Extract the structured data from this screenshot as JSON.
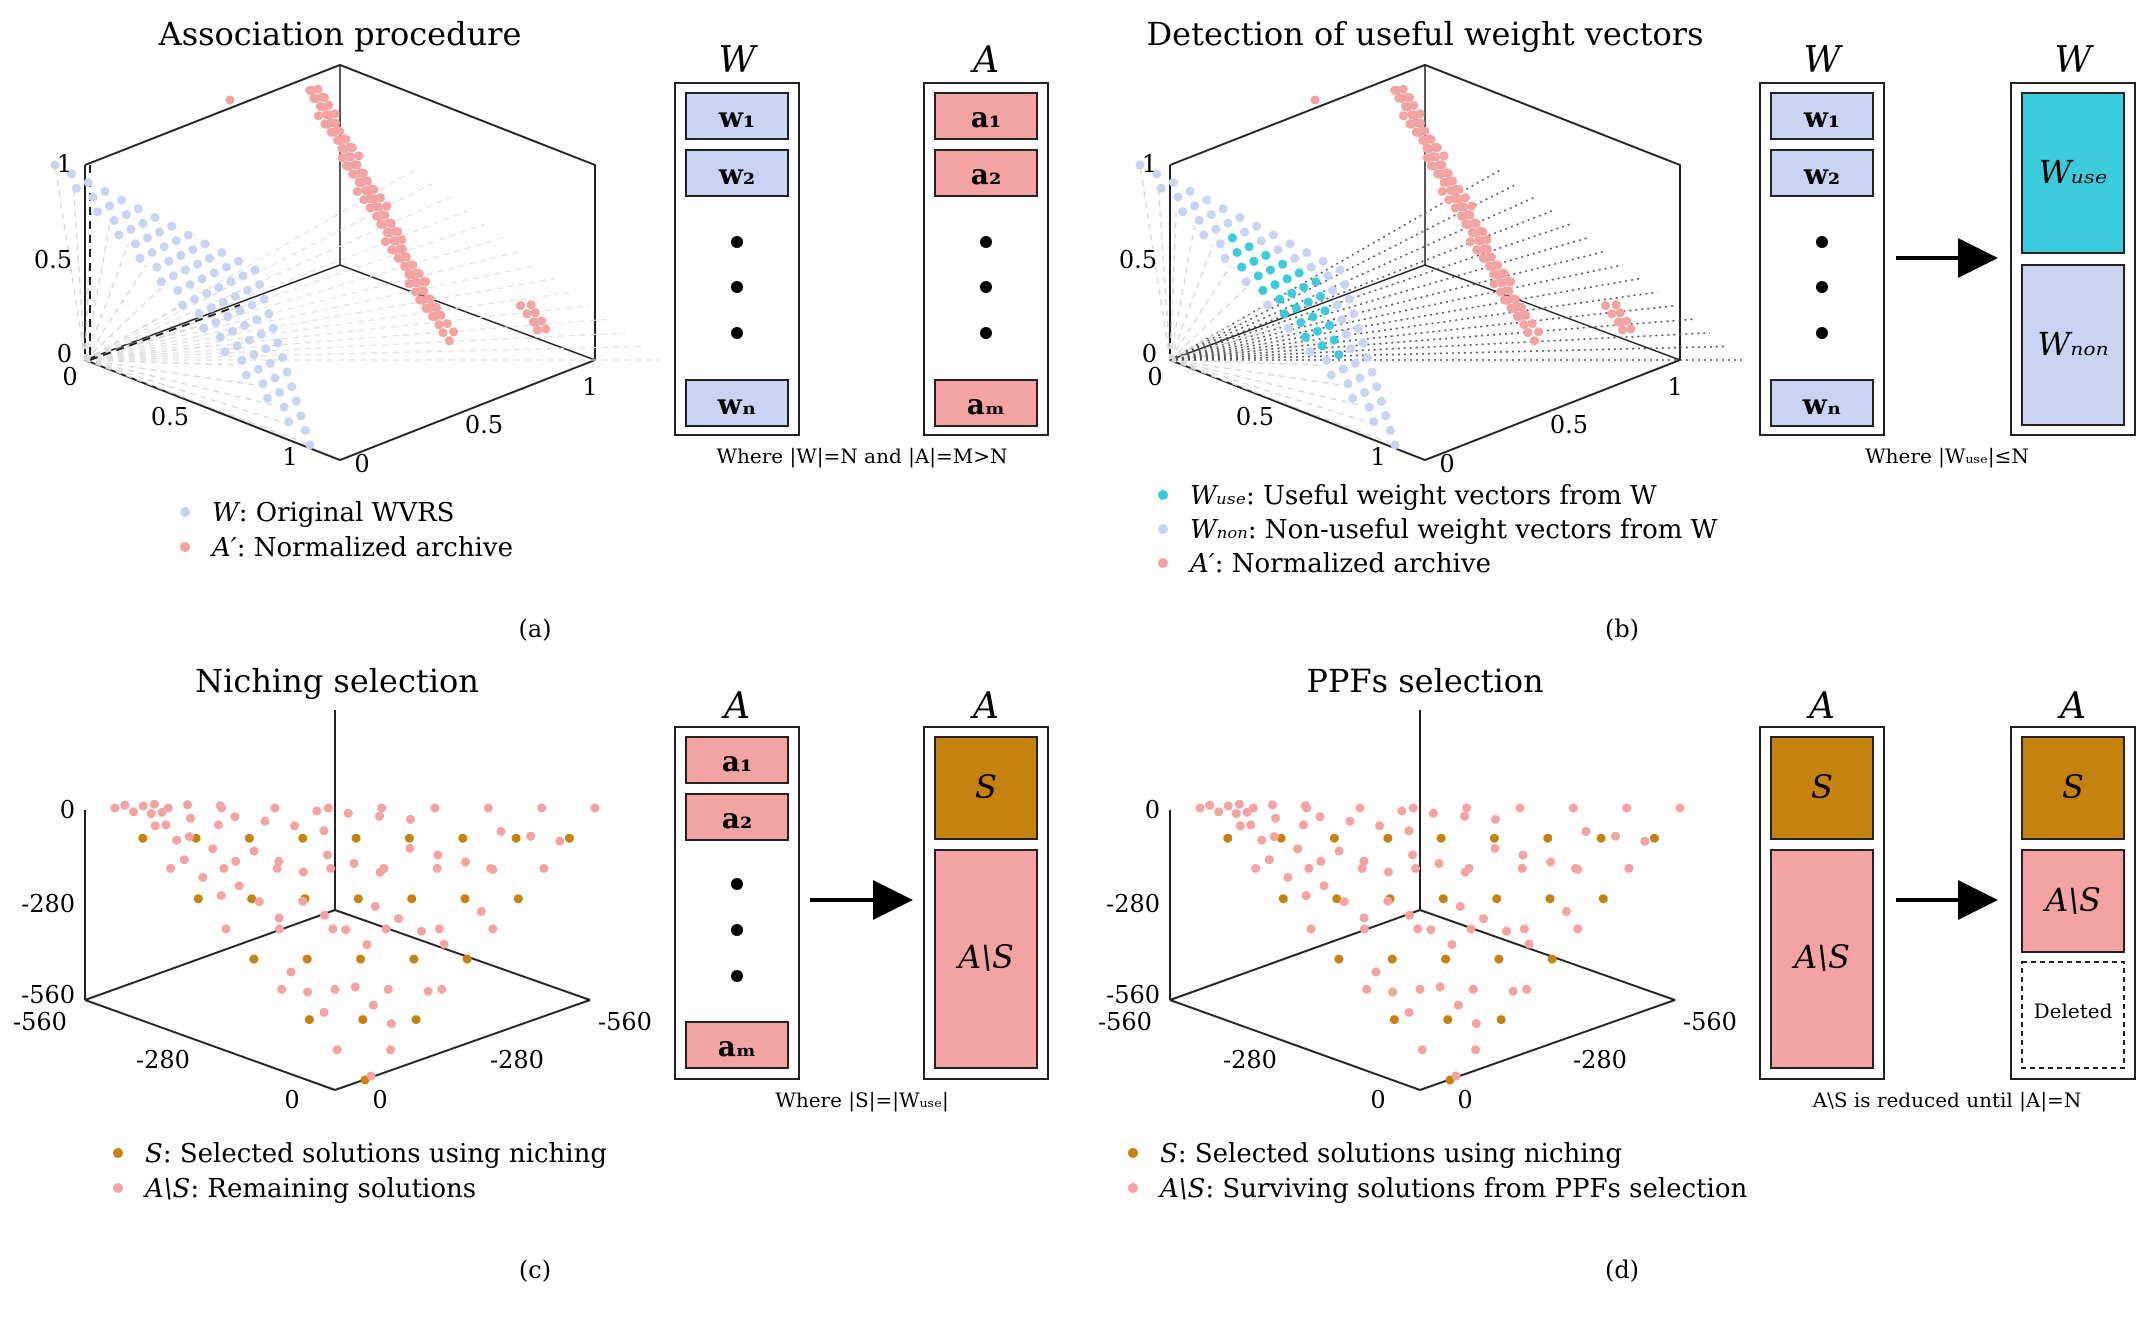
{
  "panels": {
    "a": {
      "title": "Association procedure",
      "caption": "(a)",
      "ticks": {
        "z": [
          "1",
          "0.5",
          "0"
        ],
        "x": [
          "0",
          "0.5",
          "1"
        ],
        "y": [
          "0",
          "0.5",
          "1"
        ]
      },
      "box1": {
        "header": "W",
        "items": [
          "w₁",
          "w₂",
          "wₙ"
        ],
        "footnote": "Where |W|=N and |A|=M>N"
      },
      "box2": {
        "header": "A",
        "items": [
          "a₁",
          "a₂",
          "aₘ"
        ]
      },
      "legend": [
        {
          "sym": "W",
          "text": ": Original WVRS",
          "color": "#c9d4f3"
        },
        {
          "sym": "A′",
          "text": ": Normalized archive",
          "color": "#f4a3a3"
        }
      ]
    },
    "b": {
      "title": "Detection of useful weight vectors",
      "caption": "(b)",
      "ticks": {
        "z": [
          "1",
          "0.5",
          "0"
        ],
        "x": [
          "0",
          "0.5",
          "1"
        ],
        "y": [
          "0",
          "0.5",
          "1"
        ]
      },
      "box1": {
        "header": "W",
        "items": [
          "w₁",
          "w₂",
          "wₙ"
        ],
        "footnote": "Where |Wᵤₛₑ|≤N"
      },
      "box2": {
        "header": "W",
        "use": "Wᵤₛₑ",
        "non": "Wₙₒₙ"
      },
      "legend": [
        {
          "sym": "Wᵤₛₑ",
          "text": ": Useful weight vectors from W",
          "color": "#3ccbdb"
        },
        {
          "sym": "Wₙₒₙ",
          "text": ": Non-useful weight vectors from W",
          "color": "#c9d4f3"
        },
        {
          "sym": "A′",
          "text": ": Normalized archive",
          "color": "#f4a3a3"
        }
      ]
    },
    "c": {
      "title": "Niching selection",
      "caption": "(c)",
      "ticks": {
        "z": [
          "0",
          "-280",
          "-560"
        ],
        "x": [
          "-560",
          "-280",
          "0"
        ],
        "y": [
          "0",
          "-280",
          "-560"
        ]
      },
      "box1": {
        "header": "A",
        "items": [
          "a₁",
          "a₂",
          "aₘ"
        ],
        "footnote": "Where |S|=|Wᵤₛₑ|"
      },
      "box2": {
        "header": "A",
        "s": "S",
        "rest": "A\\S"
      },
      "legend": [
        {
          "sym": "S",
          "text": ": Selected solutions using niching",
          "color": "#c5820f"
        },
        {
          "sym": "A\\S",
          "text": ": Remaining solutions",
          "color": "#f4a3a3"
        }
      ]
    },
    "d": {
      "title": "PPFs selection",
      "caption": "(d)",
      "ticks": {
        "z": [
          "0",
          "-280",
          "-560"
        ],
        "x": [
          "-560",
          "-280",
          "0"
        ],
        "y": [
          "0",
          "-280",
          "-560"
        ]
      },
      "box1": {
        "header": "A",
        "s": "S",
        "rest": "A\\S",
        "footnote": "A\\S is reduced until |A|=N"
      },
      "box2": {
        "header": "A",
        "s": "S",
        "rest": "A\\S",
        "deleted": "Deleted"
      },
      "legend": [
        {
          "sym": "S",
          "text": ": Selected solutions using niching",
          "color": "#c5820f"
        },
        {
          "sym": "A\\S",
          "text": ": Surviving solutions from PPFs selection",
          "color": "#f4a3a3"
        }
      ]
    }
  },
  "colors": {
    "w": "#c9d4f3",
    "a": "#f4a3a3",
    "use": "#3ccbdb",
    "s": "#c5820f",
    "boxW": "#c9d4f3",
    "boxA": "#f4a3a3",
    "boxS": "#c5820f",
    "boxUse": "#3ccbdb"
  }
}
